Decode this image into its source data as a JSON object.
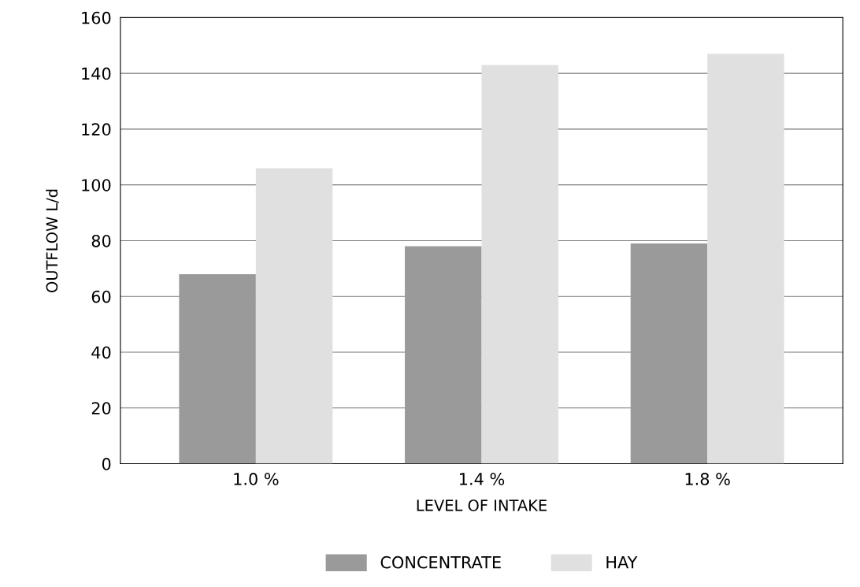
{
  "chart_data": {
    "type": "bar",
    "xlabel": "LEVEL OF INTAKE",
    "ylabel": "OUTFLOW L/d",
    "categories": [
      "1.0 %",
      "1.4 %",
      "1.8 %"
    ],
    "series": [
      {
        "name": "CONCENTRATE",
        "color": "#9a9a9a",
        "values": [
          68,
          78,
          79
        ]
      },
      {
        "name": "HAY",
        "color": "#e0e0e0",
        "values": [
          106,
          143,
          147
        ]
      }
    ],
    "ylim": [
      0,
      160
    ],
    "yticks": [
      0,
      20,
      40,
      60,
      80,
      100,
      120,
      140,
      160
    ],
    "grid": "y",
    "legend": "bottom"
  }
}
